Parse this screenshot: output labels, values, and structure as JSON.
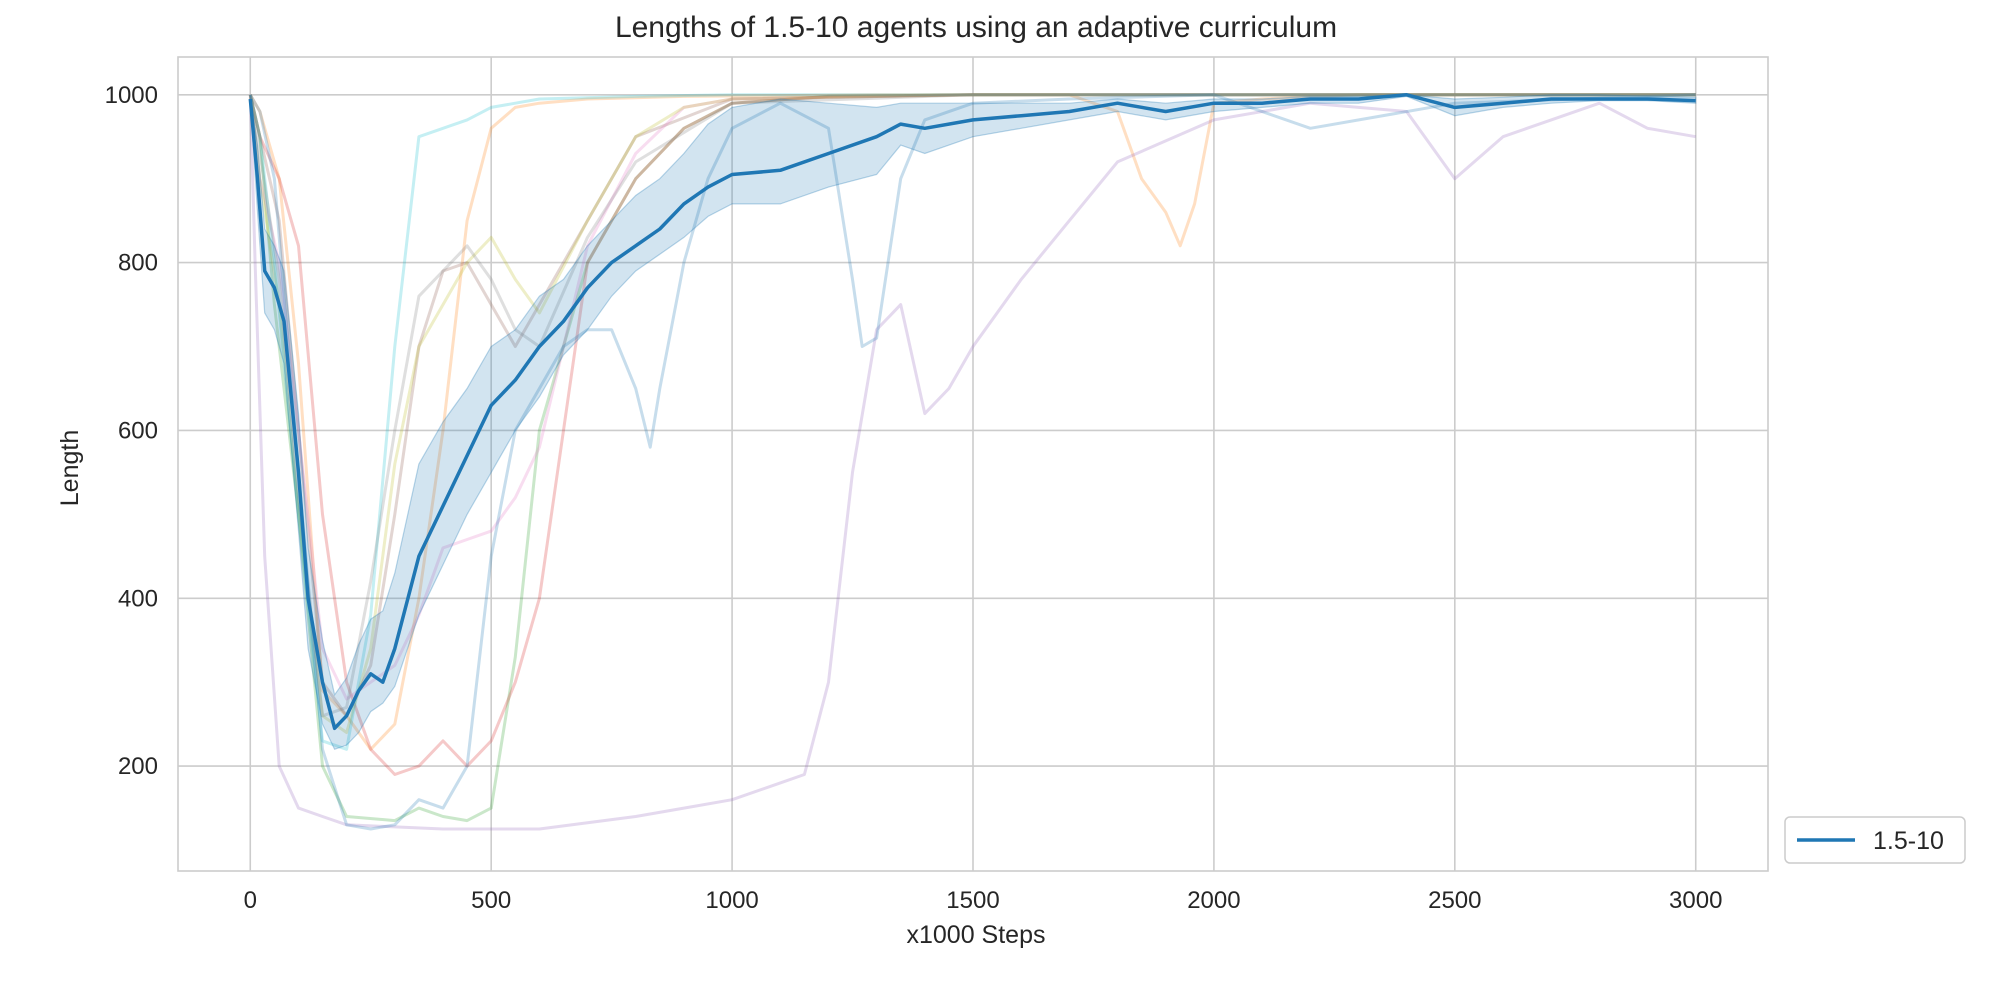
{
  "chart_data": {
    "type": "line",
    "title": "Lengths of 1.5-10 agents using an adaptive curriculum",
    "xlabel": "x1000 Steps",
    "ylabel": "Length",
    "xlim": [
      -150,
      3150
    ],
    "ylim": [
      75,
      1045
    ],
    "xticks": [
      0,
      500,
      1000,
      1500,
      2000,
      2500,
      3000
    ],
    "yticks": [
      200,
      400,
      600,
      800,
      1000
    ],
    "grid": true,
    "legend": {
      "location": "outside-bottom-right",
      "entries": [
        "1.5-10"
      ]
    },
    "colors": {
      "mean": "#1f77b4",
      "band": "#1f77b4",
      "grid": "#cccccc",
      "runs": [
        "#ff7f0e",
        "#2ca02c",
        "#d62728",
        "#9467bd",
        "#8c564b",
        "#e377c2",
        "#bcbd22",
        "#17becf",
        "#7f7f7f",
        "#1f77b4"
      ]
    },
    "series": [
      {
        "name": "1.5-10",
        "x": [
          0,
          15,
          30,
          50,
          70,
          100,
          120,
          150,
          175,
          200,
          225,
          250,
          275,
          300,
          350,
          400,
          450,
          500,
          550,
          600,
          650,
          700,
          750,
          800,
          850,
          900,
          950,
          1000,
          1100,
          1200,
          1300,
          1350,
          1400,
          1500,
          1600,
          1700,
          1800,
          1900,
          2000,
          2100,
          2200,
          2300,
          2400,
          2500,
          2600,
          2700,
          2800,
          2900,
          3000
        ],
        "values": [
          995,
          900,
          790,
          770,
          730,
          550,
          400,
          300,
          245,
          260,
          290,
          310,
          300,
          340,
          450,
          510,
          570,
          630,
          660,
          700,
          730,
          770,
          800,
          820,
          840,
          870,
          890,
          905,
          910,
          930,
          950,
          965,
          960,
          970,
          975,
          980,
          990,
          980,
          990,
          990,
          995,
          995,
          1000,
          985,
          990,
          995,
          995,
          995,
          993
        ],
        "lower": [
          995,
          860,
          740,
          720,
          680,
          480,
          340,
          250,
          220,
          225,
          240,
          265,
          275,
          295,
          380,
          440,
          500,
          550,
          600,
          640,
          690,
          720,
          760,
          790,
          810,
          830,
          855,
          870,
          870,
          890,
          905,
          940,
          930,
          950,
          960,
          970,
          980,
          970,
          980,
          985,
          990,
          990,
          998,
          975,
          985,
          990,
          993,
          993,
          990
        ],
        "upper": [
          1000,
          940,
          840,
          820,
          790,
          620,
          460,
          350,
          285,
          305,
          345,
          375,
          385,
          430,
          560,
          610,
          650,
          700,
          720,
          760,
          780,
          820,
          850,
          880,
          900,
          930,
          965,
          985,
          995,
          990,
          985,
          990,
          990,
          990,
          990,
          990,
          995,
          990,
          995,
          995,
          998,
          998,
          1000,
          995,
          997,
          1000,
          1000,
          998,
          997
        ]
      }
    ],
    "runs": [
      {
        "x": [
          0,
          20,
          60,
          100,
          150,
          200,
          250,
          300,
          350,
          400,
          450,
          500,
          550,
          600,
          700,
          900,
          1100,
          1300,
          1500,
          1700,
          1800,
          1850,
          1900,
          1930,
          1960,
          2000,
          2100,
          2300,
          2500,
          2700,
          3000
        ],
        "values": [
          1000,
          980,
          900,
          680,
          290,
          260,
          220,
          250,
          400,
          600,
          850,
          960,
          985,
          990,
          995,
          998,
          999,
          1000,
          1000,
          1000,
          980,
          900,
          860,
          820,
          870,
          990,
          995,
          1000,
          1000,
          1000,
          1000
        ]
      },
      {
        "x": [
          0,
          20,
          50,
          100,
          150,
          200,
          300,
          350,
          400,
          450,
          500,
          550,
          600,
          700,
          800,
          900,
          1000,
          1200,
          1500,
          2000,
          2500,
          3000
        ],
        "values": [
          1000,
          950,
          750,
          500,
          200,
          140,
          135,
          150,
          140,
          135,
          150,
          330,
          600,
          800,
          900,
          960,
          990,
          998,
          1000,
          1000,
          1000,
          1000
        ]
      },
      {
        "x": [
          0,
          20,
          60,
          100,
          150,
          200,
          250,
          300,
          350,
          400,
          450,
          500,
          550,
          600,
          650,
          700,
          800,
          900,
          1000,
          1200,
          1500,
          2000,
          3000
        ],
        "values": [
          1000,
          950,
          900,
          820,
          500,
          300,
          220,
          190,
          200,
          230,
          200,
          230,
          300,
          400,
          600,
          800,
          900,
          960,
          990,
          998,
          1000,
          1000,
          1000
        ]
      },
      {
        "x": [
          0,
          10,
          30,
          60,
          100,
          150,
          200,
          400,
          600,
          800,
          900,
          1000,
          1100,
          1150,
          1200,
          1250,
          1300,
          1350,
          1400,
          1450,
          1500,
          1600,
          1700,
          1800,
          2000,
          2200,
          2400,
          2500,
          2600,
          2700,
          2800,
          2900,
          3000
        ],
        "values": [
          1000,
          800,
          450,
          200,
          150,
          140,
          130,
          125,
          125,
          140,
          150,
          160,
          180,
          190,
          300,
          550,
          720,
          750,
          620,
          650,
          700,
          780,
          850,
          920,
          970,
          990,
          980,
          900,
          950,
          970,
          990,
          960,
          950
        ]
      },
      {
        "x": [
          0,
          20,
          60,
          100,
          150,
          200,
          250,
          300,
          350,
          400,
          450,
          500,
          550,
          600,
          700,
          800,
          1000,
          1500,
          2000,
          3000
        ],
        "values": [
          1000,
          950,
          850,
          600,
          300,
          260,
          320,
          500,
          700,
          790,
          800,
          750,
          700,
          750,
          850,
          950,
          995,
          1000,
          1000,
          1000
        ]
      },
      {
        "x": [
          0,
          20,
          60,
          100,
          150,
          200,
          250,
          300,
          350,
          400,
          450,
          500,
          550,
          600,
          650,
          700,
          800,
          900,
          1000,
          1500,
          2000,
          3000
        ],
        "values": [
          1000,
          900,
          800,
          600,
          340,
          280,
          300,
          320,
          380,
          460,
          470,
          480,
          520,
          580,
          700,
          820,
          930,
          985,
          995,
          1000,
          1000,
          1000
        ]
      },
      {
        "x": [
          0,
          20,
          60,
          100,
          150,
          200,
          250,
          300,
          350,
          400,
          450,
          500,
          550,
          600,
          700,
          800,
          900,
          1000,
          1500,
          2000,
          3000
        ],
        "values": [
          1000,
          900,
          750,
          500,
          260,
          240,
          340,
          560,
          700,
          750,
          800,
          830,
          780,
          740,
          850,
          950,
          985,
          995,
          1000,
          1000,
          1000
        ]
      },
      {
        "x": [
          0,
          20,
          50,
          100,
          150,
          200,
          250,
          300,
          350,
          400,
          450,
          500,
          550,
          600,
          800,
          1000,
          1500,
          2000,
          3000
        ],
        "values": [
          1000,
          950,
          800,
          500,
          230,
          220,
          380,
          700,
          950,
          960,
          970,
          985,
          990,
          995,
          998,
          1000,
          1000,
          1000,
          1000
        ]
      },
      {
        "x": [
          0,
          20,
          60,
          100,
          150,
          200,
          250,
          300,
          350,
          400,
          450,
          500,
          550,
          600,
          700,
          800,
          1000,
          1500,
          2000,
          3000
        ],
        "values": [
          1000,
          930,
          780,
          520,
          260,
          270,
          420,
          600,
          760,
          790,
          820,
          780,
          720,
          700,
          830,
          920,
          990,
          1000,
          1000,
          1000
        ]
      },
      {
        "x": [
          0,
          20,
          50,
          100,
          150,
          200,
          250,
          300,
          350,
          400,
          450,
          500,
          550,
          600,
          650,
          700,
          750,
          800,
          830,
          850,
          900,
          950,
          1000,
          1100,
          1200,
          1250,
          1270,
          1300,
          1350,
          1400,
          1500,
          1700,
          2000,
          2200,
          2500,
          3000
        ],
        "values": [
          1000,
          980,
          900,
          550,
          220,
          130,
          125,
          130,
          160,
          150,
          200,
          450,
          600,
          650,
          700,
          720,
          720,
          650,
          580,
          650,
          800,
          900,
          960,
          990,
          960,
          780,
          700,
          710,
          900,
          970,
          990,
          995,
          1000,
          960,
          990,
          1000
        ]
      }
    ]
  }
}
